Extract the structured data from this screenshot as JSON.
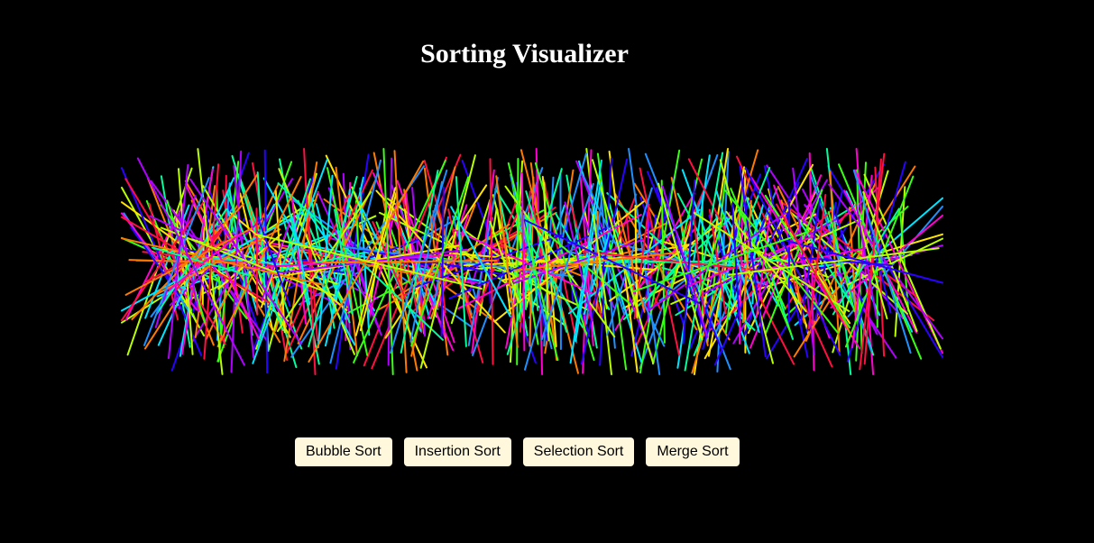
{
  "header": {
    "title": "Sorting Visualizer"
  },
  "visualizer": {
    "palette": [
      "#ff1040",
      "#ff7a00",
      "#ffe400",
      "#b8ff00",
      "#39ff14",
      "#00ff9c",
      "#00e5ff",
      "#1e90ff",
      "#2a00ff",
      "#b000ff",
      "#ff00d0"
    ]
  },
  "controls": {
    "bubble_sort_label": "Bubble Sort",
    "insertion_sort_label": "Insertion Sort",
    "selection_sort_label": "Selection Sort",
    "merge_sort_label": "Merge Sort"
  }
}
